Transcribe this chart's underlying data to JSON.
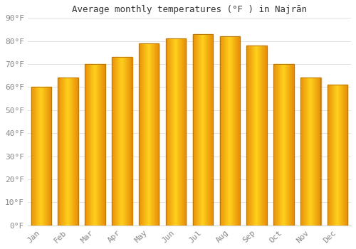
{
  "title": "Average monthly temperatures (°F ) in Najrān",
  "months": [
    "Jan",
    "Feb",
    "Mar",
    "Apr",
    "May",
    "Jun",
    "Jul",
    "Aug",
    "Sep",
    "Oct",
    "Nov",
    "Dec"
  ],
  "values": [
    60,
    64,
    70,
    73,
    79,
    81,
    83,
    82,
    78,
    70,
    64,
    61
  ],
  "bar_color_left": "#E8900A",
  "bar_color_center": "#FFD040",
  "bar_color_edge": "#C07000",
  "background_color": "#FFFFFF",
  "grid_color": "#DDDDDD",
  "tick_label_color": "#888888",
  "title_color": "#333333",
  "ylim": [
    0,
    90
  ],
  "yticks": [
    0,
    10,
    20,
    30,
    40,
    50,
    60,
    70,
    80,
    90
  ],
  "ytick_labels": [
    "0°F",
    "10°F",
    "20°F",
    "30°F",
    "40°F",
    "50°F",
    "60°F",
    "70°F",
    "80°F",
    "90°F"
  ],
  "bar_width": 0.75
}
